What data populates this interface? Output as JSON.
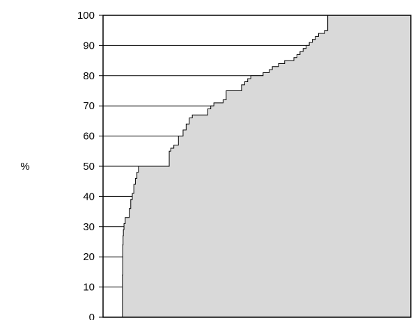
{
  "chart_data": {
    "type": "area",
    "title": "",
    "xlabel": "",
    "ylabel": "%",
    "ylim": [
      0,
      100
    ],
    "xlim": [
      0,
      100
    ],
    "yticks": [
      "0",
      "10",
      "20",
      "30",
      "40",
      "50",
      "60",
      "70",
      "80",
      "90",
      "100"
    ],
    "grid": "horizontal",
    "series": [
      {
        "x": [
          0,
          6.2,
          6.3,
          6.4,
          6.5,
          6.6,
          6.8,
          7.2,
          8,
          8.5,
          9,
          9.5,
          10,
          10.5,
          11,
          11.5,
          12,
          12.5,
          13,
          15,
          18,
          20,
          21,
          21.5,
          22,
          23,
          24,
          24.5,
          25,
          26,
          27,
          28,
          29,
          30,
          31,
          32,
          33,
          34,
          35,
          36,
          37,
          38,
          39,
          40,
          41,
          42,
          43,
          44,
          45,
          46,
          47,
          48,
          49,
          50,
          51,
          52,
          53,
          54,
          55,
          56,
          57,
          58,
          59,
          60,
          61,
          62,
          63,
          64,
          65,
          66,
          67,
          68,
          69,
          70,
          71,
          72,
          73,
          74,
          75,
          76,
          77,
          78,
          79,
          80,
          81,
          82,
          83,
          84,
          85,
          86,
          87,
          88,
          89,
          90,
          91,
          92,
          93,
          94,
          95,
          96,
          97,
          98,
          99,
          100
        ],
        "values": [
          0,
          0,
          14,
          24,
          27,
          29,
          31,
          33,
          33,
          36,
          39,
          41,
          44,
          46,
          48,
          50,
          50,
          50,
          50,
          50,
          50,
          50,
          50,
          55,
          56,
          57,
          57,
          60,
          60,
          62,
          64,
          66,
          67,
          67,
          67,
          67,
          67,
          69,
          70,
          71,
          71,
          71,
          72,
          75,
          75,
          75,
          75,
          75,
          77,
          78,
          79,
          80,
          80,
          80,
          80,
          81,
          81,
          82,
          83,
          83,
          84,
          84,
          85,
          85,
          85,
          86,
          87,
          88,
          89,
          90,
          91,
          92,
          93,
          94,
          94,
          95,
          100,
          100,
          100,
          100,
          100,
          100,
          100,
          100,
          100,
          100,
          100,
          100,
          100,
          100,
          100,
          100,
          100,
          100,
          100,
          100,
          100,
          100,
          100,
          100,
          100,
          100,
          100,
          100
        ]
      }
    ],
    "colors": {
      "fill": "#d9d9d9",
      "line": "#000000",
      "grid": "#000000",
      "background": "#ffffff"
    }
  }
}
